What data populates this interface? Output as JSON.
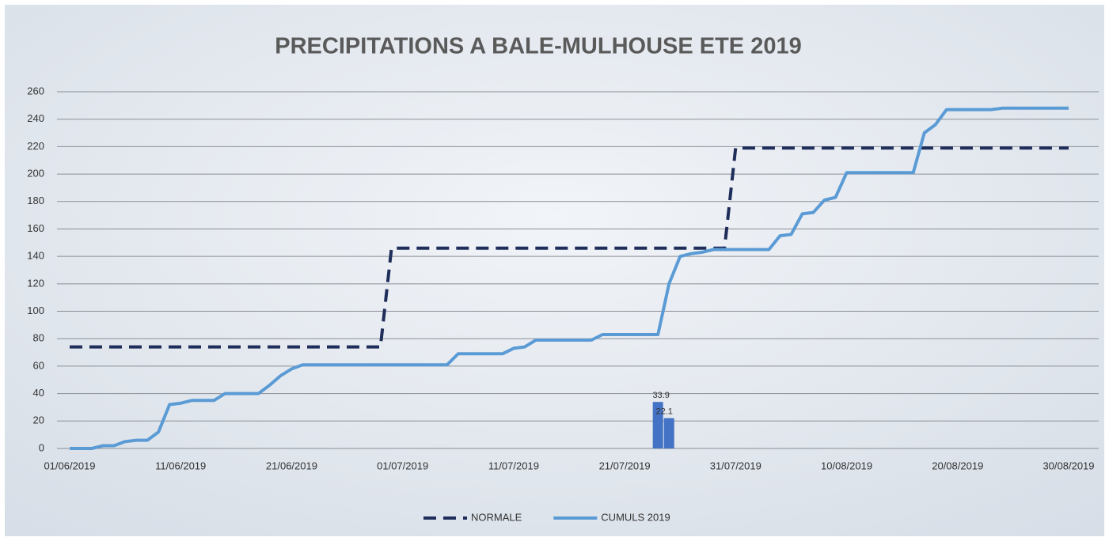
{
  "chart_data": {
    "type": "line",
    "title": "PRECIPITATIONS A BALE-MULHOUSE ETE 2019",
    "categories": [
      "01/06/2019",
      null,
      null,
      null,
      null,
      null,
      null,
      null,
      null,
      null,
      "11/06/2019",
      null,
      null,
      null,
      null,
      null,
      null,
      null,
      null,
      null,
      "21/06/2019",
      null,
      null,
      null,
      null,
      null,
      null,
      null,
      null,
      null,
      "01/07/2019",
      null,
      null,
      null,
      null,
      null,
      null,
      null,
      null,
      null,
      "11/07/2019",
      null,
      null,
      null,
      null,
      null,
      null,
      null,
      null,
      null,
      "21/07/2019",
      null,
      null,
      null,
      null,
      null,
      null,
      null,
      null,
      null,
      "31/07/2019",
      null,
      null,
      null,
      null,
      null,
      null,
      null,
      null,
      null,
      "10/08/2019",
      null,
      null,
      null,
      null,
      null,
      null,
      null,
      null,
      null,
      "20/08/2019",
      null,
      null,
      null,
      null,
      null,
      null,
      null,
      null,
      null,
      "30/08/2019"
    ],
    "series": [
      {
        "name": "NORMALE",
        "color": "#1f2d5a",
        "line_style": "dashed",
        "values": [
          74,
          74,
          74,
          74,
          74,
          74,
          74,
          74,
          74,
          74,
          74,
          74,
          74,
          74,
          74,
          74,
          74,
          74,
          74,
          74,
          74,
          74,
          74,
          74,
          74,
          74,
          74,
          74,
          74,
          146,
          146,
          146,
          146,
          146,
          146,
          146,
          146,
          146,
          146,
          146,
          146,
          146,
          146,
          146,
          146,
          146,
          146,
          146,
          146,
          146,
          146,
          146,
          146,
          146,
          146,
          146,
          146,
          146,
          146,
          146,
          219,
          219,
          219,
          219,
          219,
          219,
          219,
          219,
          219,
          219,
          219,
          219,
          219,
          219,
          219,
          219,
          219,
          219,
          219,
          219,
          219,
          219,
          219,
          219,
          219,
          219,
          219,
          219,
          219,
          219,
          219
        ]
      },
      {
        "name": "CUMULS 2019",
        "color": "#5b9bd5",
        "line_style": "solid",
        "values": [
          0,
          0,
          0,
          2,
          2,
          5,
          6,
          6,
          12,
          32,
          33,
          35,
          35,
          35,
          40,
          40,
          40,
          40,
          46,
          53,
          58,
          61,
          61,
          61,
          61,
          61,
          61,
          61,
          61,
          61,
          61,
          61,
          61,
          61,
          61,
          69,
          69,
          69,
          69,
          69,
          73,
          74,
          79,
          79,
          79,
          79,
          79,
          79,
          83,
          83,
          83,
          83,
          83,
          83,
          120,
          140,
          142,
          143,
          145,
          145,
          145,
          145,
          145,
          145,
          155,
          156,
          171,
          172,
          181,
          183,
          201,
          201,
          201,
          201,
          201,
          201,
          201,
          230,
          236,
          247,
          247,
          247,
          247,
          247,
          248,
          248,
          248,
          248,
          248,
          248,
          248
        ]
      }
    ],
    "bars": {
      "color": "#4472c4",
      "values": [
        null,
        null,
        null,
        null,
        null,
        null,
        null,
        null,
        null,
        null,
        null,
        null,
        null,
        null,
        null,
        null,
        null,
        null,
        null,
        null,
        null,
        null,
        null,
        null,
        null,
        null,
        null,
        null,
        null,
        null,
        null,
        null,
        null,
        null,
        null,
        null,
        null,
        null,
        null,
        null,
        null,
        null,
        null,
        null,
        null,
        null,
        null,
        null,
        null,
        null,
        null,
        null,
        null,
        33.9,
        22.1,
        null,
        null,
        null,
        null,
        null,
        null,
        null,
        null,
        null,
        null,
        null,
        null,
        null,
        null,
        null,
        null,
        null,
        null,
        null,
        null,
        null,
        null,
        null,
        null,
        null,
        null,
        null,
        null,
        null,
        null,
        null,
        null,
        null,
        null,
        null,
        null
      ]
    },
    "ylim": [
      0,
      260
    ],
    "yticks": [
      0,
      20,
      40,
      60,
      80,
      100,
      120,
      140,
      160,
      180,
      200,
      220,
      240,
      260
    ],
    "grid": true,
    "legend": "bottom"
  }
}
